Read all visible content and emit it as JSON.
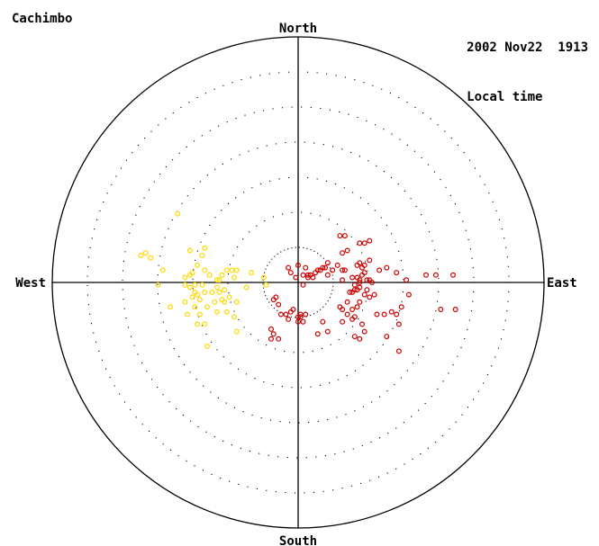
{
  "header": {
    "station": "Cachimbo",
    "datetime": "2002 Nov22  1913",
    "time_label": "Local time"
  },
  "directions": {
    "north": "North",
    "south": "South",
    "east": "East",
    "west": "West"
  },
  "colors": {
    "yellow": "#FFD800",
    "red": "#CC0000",
    "line": "#000000",
    "ring": "#000000"
  },
  "chart_data": {
    "type": "scatter",
    "projection": "polar sky map",
    "rings": 6,
    "yellow_points": [
      [
        -0.49,
        0.28
      ],
      [
        -0.39,
        0.11
      ],
      [
        -0.41,
        0.07
      ],
      [
        -0.43,
        0.04
      ],
      [
        -0.36,
        0.03
      ],
      [
        -0.38,
        0.05
      ],
      [
        -0.44,
        0.03
      ],
      [
        -0.33,
        0.01
      ],
      [
        -0.42,
        -0.01
      ],
      [
        -0.39,
        -0.01
      ],
      [
        -0.46,
        -0.01
      ],
      [
        -0.44,
        -0.02
      ],
      [
        -0.33,
        -0.02
      ],
      [
        -0.32,
        0.01
      ],
      [
        -0.31,
        0.03
      ],
      [
        -0.29,
        0.05
      ],
      [
        -0.27,
        0.05
      ],
      [
        -0.3,
        -0.03
      ],
      [
        -0.42,
        -0.04
      ],
      [
        -0.41,
        -0.05
      ],
      [
        -0.38,
        -0.04
      ],
      [
        -0.35,
        -0.04
      ],
      [
        -0.32,
        -0.04
      ],
      [
        -0.26,
        0.02
      ],
      [
        -0.25,
        0.05
      ],
      [
        -0.43,
        -0.06
      ],
      [
        -0.4,
        -0.07
      ],
      [
        -0.31,
        -0.07
      ],
      [
        -0.34,
        -0.08
      ],
      [
        -0.3,
        -0.08
      ],
      [
        -0.28,
        -0.06
      ],
      [
        -0.25,
        -0.08
      ],
      [
        -0.42,
        -0.1
      ],
      [
        -0.37,
        -0.1
      ],
      [
        -0.33,
        -0.12
      ],
      [
        -0.29,
        -0.12
      ],
      [
        -0.46,
        -0.08
      ],
      [
        -0.52,
        -0.1
      ],
      [
        -0.45,
        -0.13
      ],
      [
        -0.4,
        -0.13
      ],
      [
        -0.41,
        -0.17
      ],
      [
        -0.38,
        -0.17
      ],
      [
        -0.26,
        -0.14
      ],
      [
        -0.25,
        -0.2
      ],
      [
        -0.37,
        -0.26
      ],
      [
        -0.19,
        0.04
      ],
      [
        -0.14,
        0.02
      ],
      [
        -0.13,
        -0.01
      ],
      [
        -0.21,
        -0.02
      ],
      [
        -0.57,
        -0.01
      ],
      [
        -0.55,
        0.05
      ],
      [
        -0.6,
        0.1
      ],
      [
        -0.62,
        0.12
      ],
      [
        -0.64,
        0.11
      ],
      [
        -0.44,
        0.13
      ],
      [
        -0.38,
        0.14
      ],
      [
        -0.46,
        0.02
      ]
    ],
    "red_points": [
      [
        -0.01,
        0.02
      ],
      [
        0.02,
        0.03
      ],
      [
        0.04,
        0.02
      ],
      [
        0.05,
        0.03
      ],
      [
        0.06,
        0.02
      ],
      [
        0.07,
        0.04
      ],
      [
        0.08,
        0.05
      ],
      [
        0.09,
        0.05
      ],
      [
        0.1,
        0.06
      ],
      [
        0.11,
        0.06
      ],
      [
        0.03,
        0.06
      ],
      [
        -0.03,
        0.04
      ],
      [
        -0.04,
        0.06
      ],
      [
        0.0,
        0.07
      ],
      [
        0.12,
        0.03
      ],
      [
        0.14,
        0.05
      ],
      [
        0.16,
        0.07
      ],
      [
        0.18,
        0.05
      ],
      [
        0.02,
        -0.01
      ],
      [
        -0.09,
        -0.06
      ],
      [
        -0.1,
        -0.07
      ],
      [
        -0.08,
        -0.09
      ],
      [
        -0.07,
        -0.13
      ],
      [
        -0.05,
        -0.13
      ],
      [
        -0.03,
        -0.12
      ],
      [
        -0.02,
        -0.11
      ],
      [
        -0.04,
        -0.15
      ],
      [
        0.0,
        -0.14
      ],
      [
        0.01,
        -0.14
      ],
      [
        0.01,
        -0.13
      ],
      [
        0.03,
        -0.13
      ],
      [
        0.0,
        -0.16
      ],
      [
        0.02,
        -0.16
      ],
      [
        -0.11,
        -0.19
      ],
      [
        -0.1,
        -0.21
      ],
      [
        -0.08,
        -0.23
      ],
      [
        -0.11,
        -0.23
      ],
      [
        0.1,
        -0.16
      ],
      [
        0.12,
        -0.2
      ],
      [
        0.08,
        -0.21
      ],
      [
        0.17,
        -0.1
      ],
      [
        0.18,
        -0.11
      ],
      [
        0.2,
        -0.13
      ],
      [
        0.22,
        -0.11
      ],
      [
        0.22,
        -0.15
      ],
      [
        0.23,
        -0.14
      ],
      [
        0.24,
        -0.1
      ],
      [
        0.25,
        -0.08
      ],
      [
        0.2,
        -0.08
      ],
      [
        0.21,
        -0.04
      ],
      [
        0.22,
        -0.04
      ],
      [
        0.23,
        -0.03
      ],
      [
        0.24,
        -0.03
      ],
      [
        0.25,
        -0.02
      ],
      [
        0.23,
        -0.01
      ],
      [
        0.25,
        0.0
      ],
      [
        0.24,
        0.02
      ],
      [
        0.25,
        0.01
      ],
      [
        0.26,
        0.03
      ],
      [
        0.27,
        0.04
      ],
      [
        0.28,
        0.01
      ],
      [
        0.29,
        0.01
      ],
      [
        0.3,
        0.0
      ],
      [
        0.28,
        -0.03
      ],
      [
        0.27,
        -0.05
      ],
      [
        0.29,
        -0.06
      ],
      [
        0.31,
        -0.05
      ],
      [
        0.22,
        0.02
      ],
      [
        0.18,
        0.01
      ],
      [
        0.19,
        0.05
      ],
      [
        0.24,
        0.07
      ],
      [
        0.25,
        0.08
      ],
      [
        0.26,
        0.06
      ],
      [
        0.27,
        0.07
      ],
      [
        0.29,
        0.09
      ],
      [
        0.33,
        0.05
      ],
      [
        0.36,
        0.06
      ],
      [
        0.4,
        0.04
      ],
      [
        0.44,
        0.01
      ],
      [
        0.52,
        0.03
      ],
      [
        0.56,
        0.03
      ],
      [
        0.63,
        0.03
      ],
      [
        0.58,
        -0.11
      ],
      [
        0.64,
        -0.11
      ],
      [
        0.32,
        -0.13
      ],
      [
        0.35,
        -0.13
      ],
      [
        0.38,
        -0.12
      ],
      [
        0.4,
        -0.13
      ],
      [
        0.41,
        -0.17
      ],
      [
        0.45,
        -0.05
      ],
      [
        0.42,
        -0.1
      ],
      [
        0.36,
        -0.22
      ],
      [
        0.41,
        -0.28
      ],
      [
        0.26,
        -0.17
      ],
      [
        0.27,
        -0.2
      ],
      [
        0.25,
        -0.23
      ],
      [
        0.23,
        -0.22
      ],
      [
        0.18,
        -0.16
      ],
      [
        0.17,
        0.19
      ],
      [
        0.19,
        0.19
      ],
      [
        0.25,
        0.16
      ],
      [
        0.27,
        0.16
      ],
      [
        0.29,
        0.17
      ],
      [
        0.2,
        0.13
      ],
      [
        0.18,
        0.12
      ],
      [
        0.12,
        0.08
      ],
      [
        0.04,
        0.03
      ]
    ]
  }
}
